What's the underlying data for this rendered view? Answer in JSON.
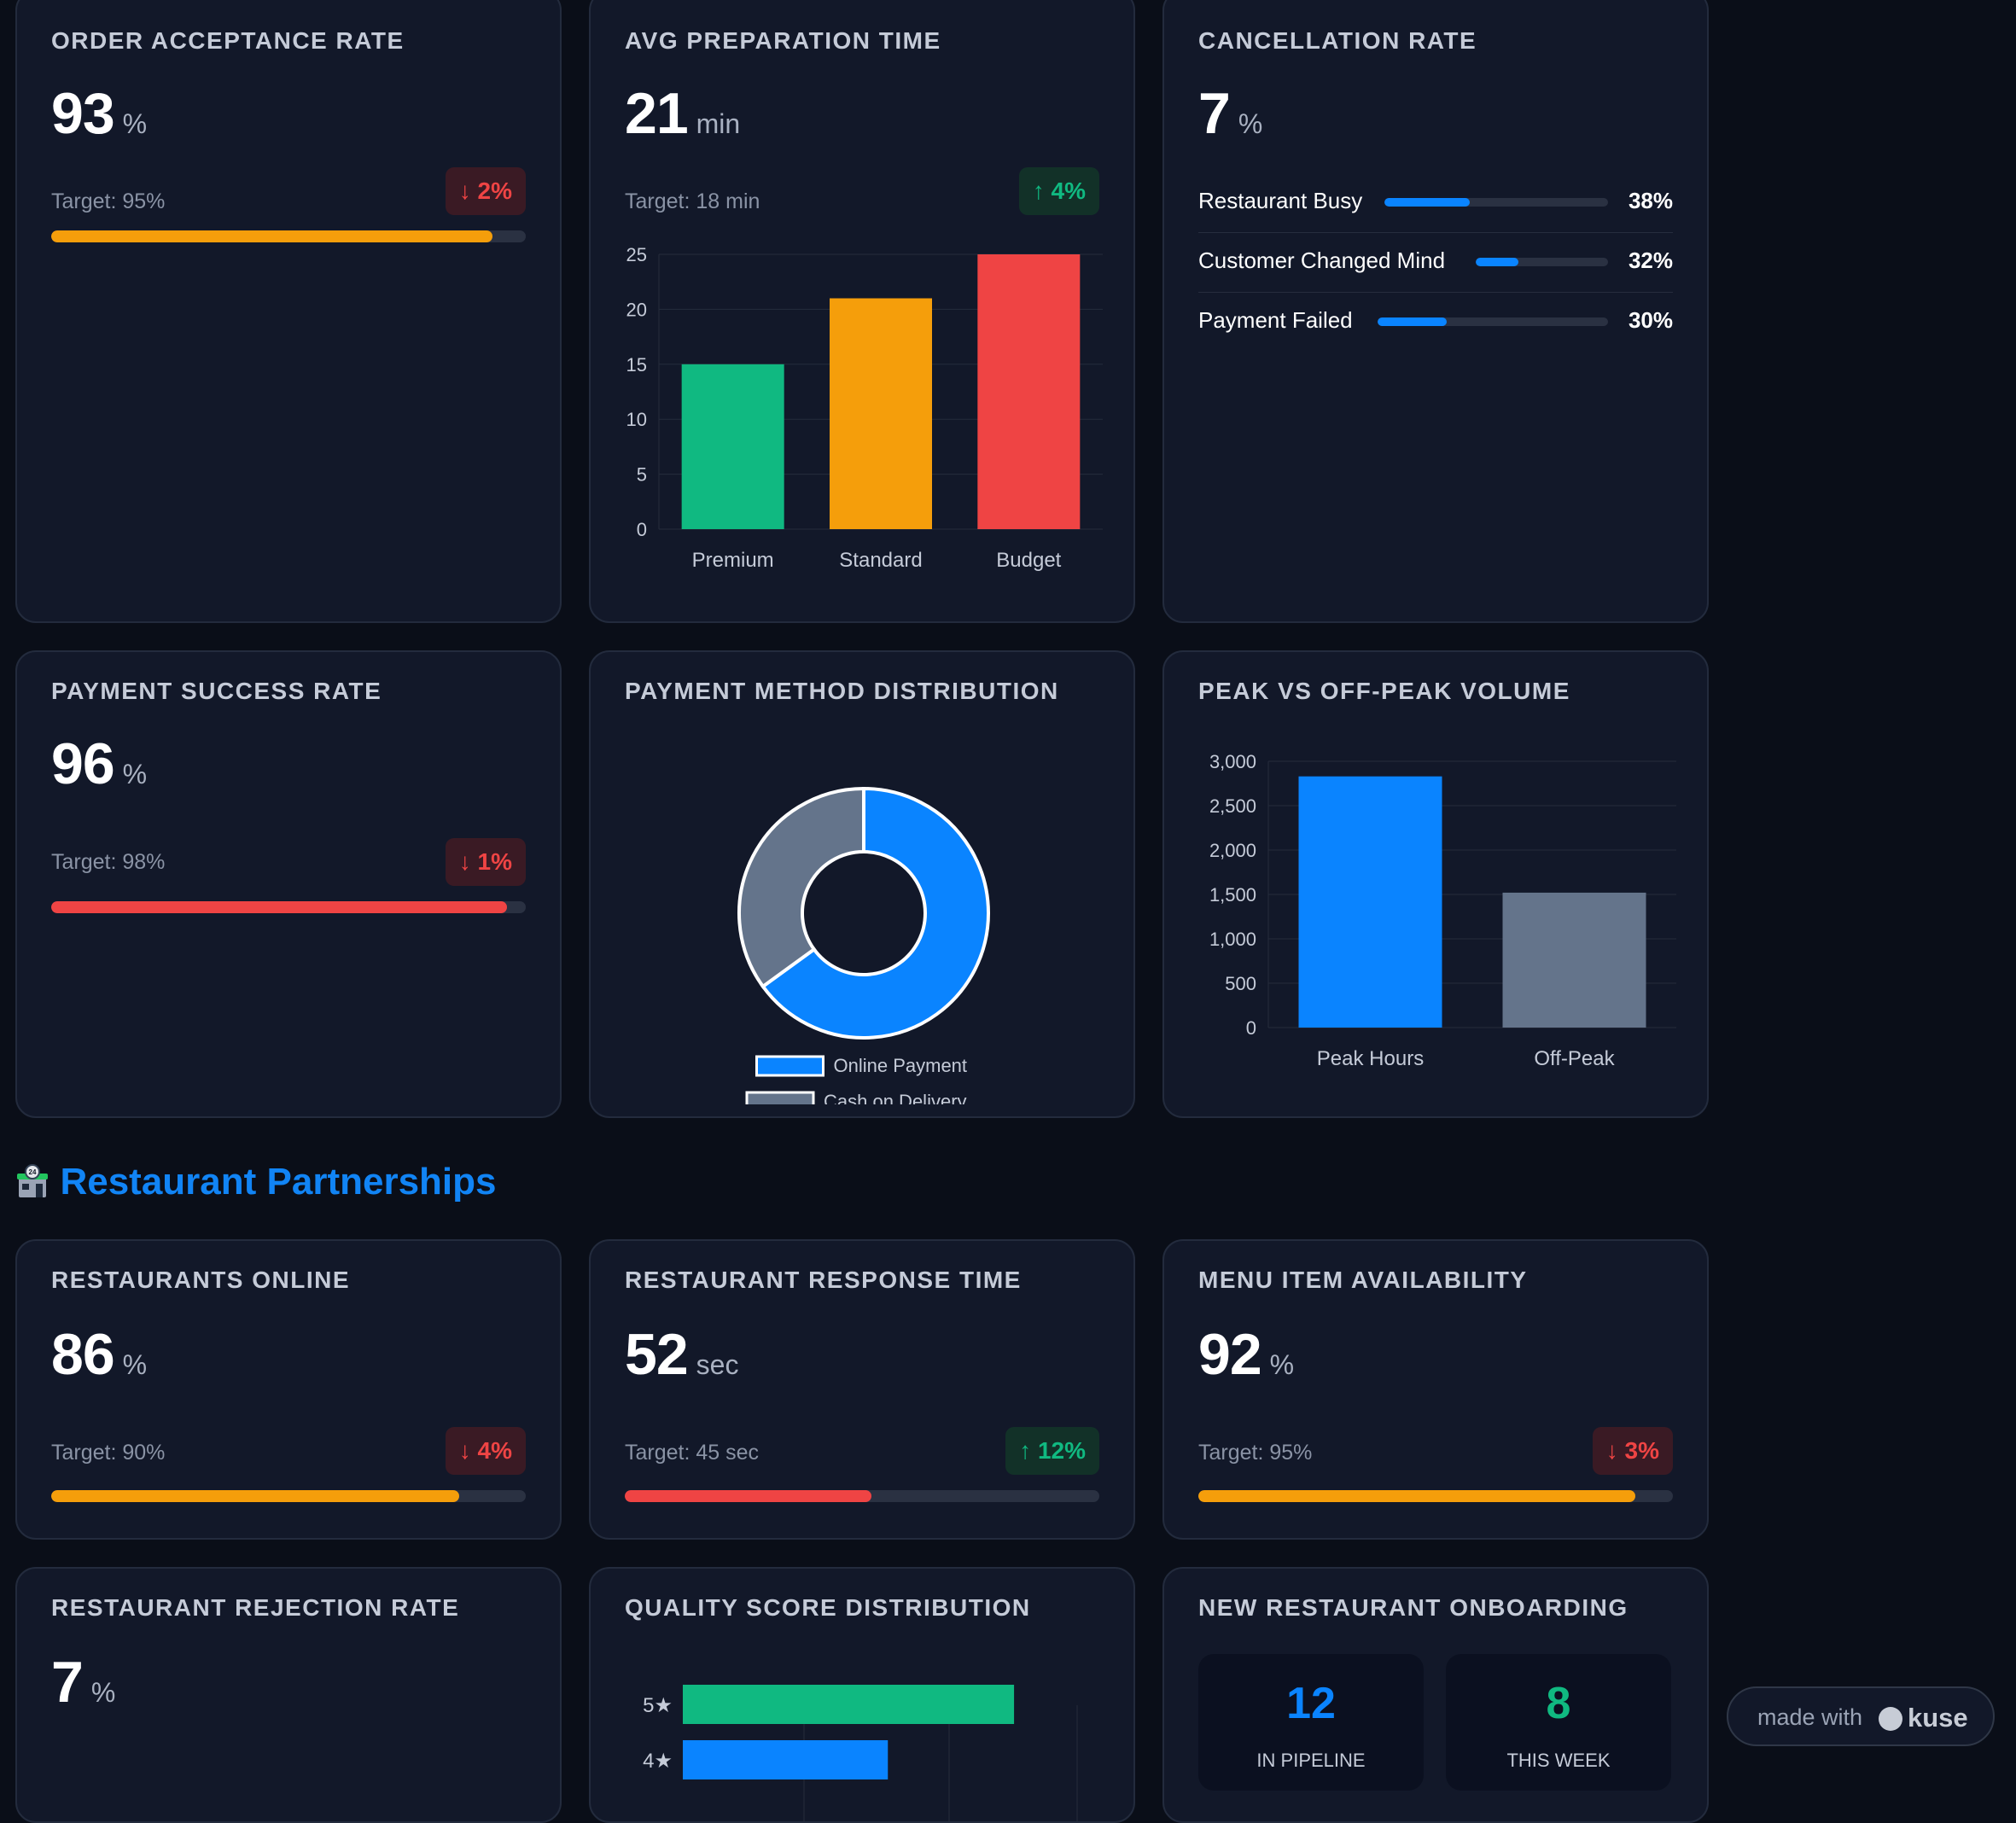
{
  "cards": {
    "order_acceptance": {
      "title": "ORDER ACCEPTANCE RATE",
      "value": "93",
      "unit": "%",
      "target": "Target: 95%",
      "change": "↓ 2%",
      "progress": 0.93
    },
    "avg_prep": {
      "title": "AVG PREPARATION TIME",
      "value": "21",
      "unit": "min",
      "target": "Target: 18 min",
      "change": "↑ 4%"
    },
    "cancellation": {
      "title": "CANCELLATION RATE",
      "value": "7",
      "unit": "%",
      "reasons": [
        {
          "label": "Restaurant Busy",
          "pct": "38%",
          "value": 0.38
        },
        {
          "label": "Customer Changed Mind",
          "pct": "32%",
          "value": 0.32
        },
        {
          "label": "Payment Failed",
          "pct": "30%",
          "value": 0.3
        }
      ]
    },
    "payment_success": {
      "title": "PAYMENT SUCCESS RATE",
      "value": "96",
      "unit": "%",
      "target": "Target: 98%",
      "change": "↓ 1%",
      "progress": 0.96
    },
    "payment_method": {
      "title": "PAYMENT METHOD DISTRIBUTION"
    },
    "peak_volume": {
      "title": "PEAK VS OFF-PEAK VOLUME"
    },
    "restaurants_online": {
      "title": "RESTAURANTS ONLINE",
      "value": "86",
      "unit": "%",
      "target": "Target: 90%",
      "change": "↓ 4%",
      "progress": 0.86
    },
    "response_time": {
      "title": "RESTAURANT RESPONSE TIME",
      "value": "52",
      "unit": "sec",
      "target": "Target: 45 sec",
      "change": "↑ 12%",
      "progress": 0.52
    },
    "menu_availability": {
      "title": "MENU ITEM AVAILABILITY",
      "value": "92",
      "unit": "%",
      "target": "Target: 95%",
      "change": "↓ 3%",
      "progress": 0.92
    },
    "rejection_rate": {
      "title": "RESTAURANT REJECTION RATE",
      "value": "7",
      "unit": "%"
    },
    "quality_score": {
      "title": "QUALITY SCORE DISTRIBUTION"
    },
    "onboarding": {
      "title": "NEW RESTAURANT ONBOARDING",
      "pipeline_value": "12",
      "pipeline_label": "IN PIPELINE",
      "week_value": "8",
      "week_label": "THIS WEEK"
    }
  },
  "section": {
    "icon": "restaurant-building-icon",
    "title": "Restaurant Partnerships"
  },
  "made_with": {
    "text": "made with",
    "brand": "kuse"
  },
  "colors": {
    "accent": "#0a84ff",
    "green": "#10b981",
    "orange": "#f59e0b",
    "red": "#ef4444",
    "slate": "#64748b"
  },
  "chart_data": [
    {
      "type": "bar",
      "categories": [
        "Premium",
        "Standard",
        "Budget"
      ],
      "values": [
        15,
        21,
        25
      ],
      "ylim": [
        0,
        25
      ],
      "yticks": [
        0,
        5,
        10,
        15,
        20,
        25
      ],
      "colors": [
        "#10b981",
        "#f59e0b",
        "#ef4444"
      ]
    },
    {
      "type": "pie",
      "labels": [
        "Online Payment",
        "Cash on Delivery"
      ],
      "values": [
        65,
        35
      ],
      "colors": [
        "#0a84ff",
        "#64748b"
      ],
      "legend": "bottom"
    },
    {
      "type": "bar",
      "categories": [
        "Peak Hours",
        "Off-Peak"
      ],
      "values": [
        2830,
        1520
      ],
      "ylim": [
        0,
        3000
      ],
      "yticks": [
        "0",
        "500",
        "1,000",
        "1,500",
        "2,000",
        "2,500",
        "3,000"
      ],
      "colors": [
        "#0a84ff",
        "#64748b"
      ]
    },
    {
      "type": "bar",
      "orientation": "horizontal",
      "categories": [
        "5★",
        "4★"
      ],
      "values": [
        42,
        26
      ],
      "colors": [
        "#10b981",
        "#0a84ff"
      ]
    }
  ]
}
